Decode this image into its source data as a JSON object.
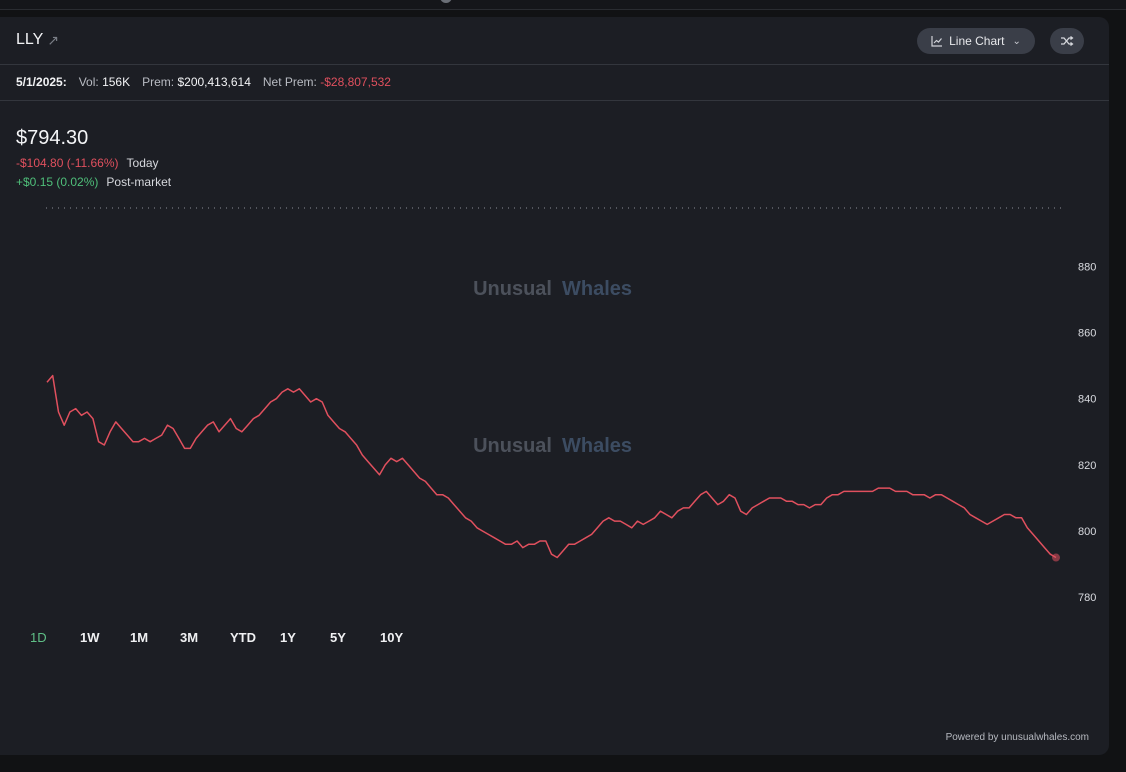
{
  "header": {
    "ticker": "LLY",
    "chart_type_label": "Line Chart"
  },
  "infobar": {
    "date": "5/1/2025:",
    "vol_label": "Vol:",
    "vol_value": "156K",
    "prem_label": "Prem:",
    "prem_value": "$200,413,614",
    "netprem_label": "Net Prem:",
    "netprem_value": "-$28,807,532"
  },
  "quote": {
    "price": "$794.30",
    "today_change": "-$104.80 (-11.66%)",
    "today_label": "Today",
    "post_change": "+$0.15 (0.02%)",
    "post_label": "Post-market"
  },
  "watermark": {
    "word1": "Unusual",
    "word2": "Whales"
  },
  "ranges": [
    "1D",
    "1W",
    "1M",
    "3M",
    "YTD",
    "1Y",
    "5Y",
    "10Y"
  ],
  "active_range": "1D",
  "footer": {
    "powered": "Powered by unusualwhales.com"
  },
  "colors": {
    "line": "#e0505e",
    "positive": "#4fbf7a",
    "negative": "#e0505e",
    "background": "#1c1e24"
  },
  "chart_data": {
    "type": "line",
    "title": "",
    "xlabel": "",
    "ylabel": "",
    "ylim": [
      771,
      891
    ],
    "yticks": [
      780,
      800,
      820,
      840,
      860,
      880
    ],
    "series": [
      {
        "values": [
          845,
          847,
          836,
          832,
          836,
          837,
          835,
          836,
          834,
          827,
          826,
          830,
          833,
          831,
          829,
          827,
          827,
          828,
          827,
          828,
          829,
          832,
          831,
          828,
          825,
          825,
          828,
          830,
          832,
          833,
          830,
          832,
          834,
          831,
          830,
          832,
          834,
          835,
          837,
          839,
          840,
          842,
          843,
          842,
          843,
          841,
          839,
          840,
          839,
          835,
          833,
          831,
          830,
          828,
          826,
          823,
          821,
          819,
          817,
          820,
          822,
          821,
          822,
          820,
          818,
          816,
          815,
          813,
          811,
          811,
          810,
          808,
          806,
          804,
          803,
          801,
          800,
          799,
          798,
          797,
          796,
          796,
          797,
          795,
          796,
          796,
          797,
          797,
          793,
          792,
          794,
          796,
          796,
          797,
          798,
          799,
          801,
          803,
          804,
          803,
          803,
          802,
          801,
          803,
          802,
          803,
          804,
          806,
          805,
          804,
          806,
          807,
          807,
          809,
          811,
          812,
          810,
          808,
          809,
          811,
          810,
          806,
          805,
          807,
          808,
          809,
          810,
          810,
          810,
          809,
          809,
          808,
          808,
          807,
          808,
          808,
          810,
          811,
          811,
          812,
          812,
          812,
          812,
          812,
          812,
          813,
          813,
          813,
          812,
          812,
          812,
          811,
          811,
          811,
          810,
          811,
          811,
          810,
          809,
          808,
          807,
          805,
          804,
          803,
          802,
          803,
          804,
          805,
          805,
          804,
          804,
          801,
          799,
          797,
          795,
          793,
          792
        ]
      }
    ]
  }
}
